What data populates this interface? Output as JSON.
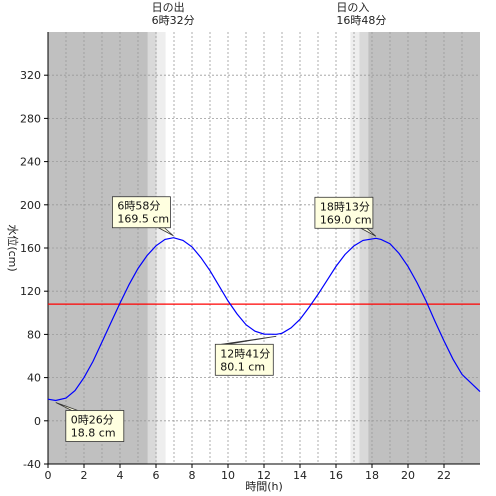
{
  "chart_data": {
    "type": "line",
    "title": "",
    "xlabel": "時間(h)",
    "ylabel": "水位(cm)",
    "xlim": [
      0,
      24
    ],
    "ylim": [
      -40,
      360
    ],
    "x_ticks": [
      0,
      2,
      4,
      6,
      8,
      10,
      12,
      14,
      16,
      18,
      20,
      22
    ],
    "y_ticks": [
      -40,
      0,
      40,
      80,
      120,
      160,
      200,
      240,
      280,
      320
    ],
    "grid": true,
    "reference_line": {
      "y": 108,
      "color": "#ff0000"
    },
    "sunrise": {
      "label": "日の出",
      "time_label": "6時32分",
      "time": 6.533
    },
    "sunset": {
      "label": "日の入",
      "time_label": "16時48分",
      "time": 16.8
    },
    "series": [
      {
        "color": "#0000ff",
        "x": [
          0,
          0.43,
          1,
          1.5,
          2,
          2.5,
          3,
          3.5,
          4,
          4.5,
          5,
          5.5,
          6,
          6.5,
          6.97,
          7.5,
          8,
          8.5,
          9,
          9.5,
          10,
          10.5,
          11,
          11.5,
          12,
          12.68,
          13,
          13.5,
          14,
          14.5,
          15,
          15.5,
          16,
          16.5,
          17,
          17.5,
          18.22,
          18.5,
          19,
          19.5,
          20,
          20.5,
          21,
          21.5,
          22,
          22.5,
          23,
          24
        ],
        "y": [
          20,
          18.8,
          21,
          28,
          40,
          55,
          73,
          91,
          109,
          126,
          141,
          153,
          162,
          168,
          169.5,
          167,
          161,
          151,
          139,
          125,
          111,
          99,
          89,
          83,
          80.3,
          80.1,
          81,
          86,
          94,
          105,
          117,
          130,
          143,
          154,
          162,
          167,
          169.0,
          168,
          164,
          155,
          143,
          128,
          111,
          92,
          74,
          57,
          43,
          27
        ]
      }
    ],
    "annotations": [
      {
        "x": 0.433,
        "y": 18.8,
        "time": "0時26分",
        "value": "18.8 cm"
      },
      {
        "x": 6.967,
        "y": 169.5,
        "time": "6時58分",
        "value": "169.5 cm"
      },
      {
        "x": 12.683,
        "y": 80.1,
        "time": "12時41分",
        "value": "80.1 cm"
      },
      {
        "x": 18.217,
        "y": 169.0,
        "time": "18時13分",
        "value": "169.0 cm"
      }
    ]
  }
}
